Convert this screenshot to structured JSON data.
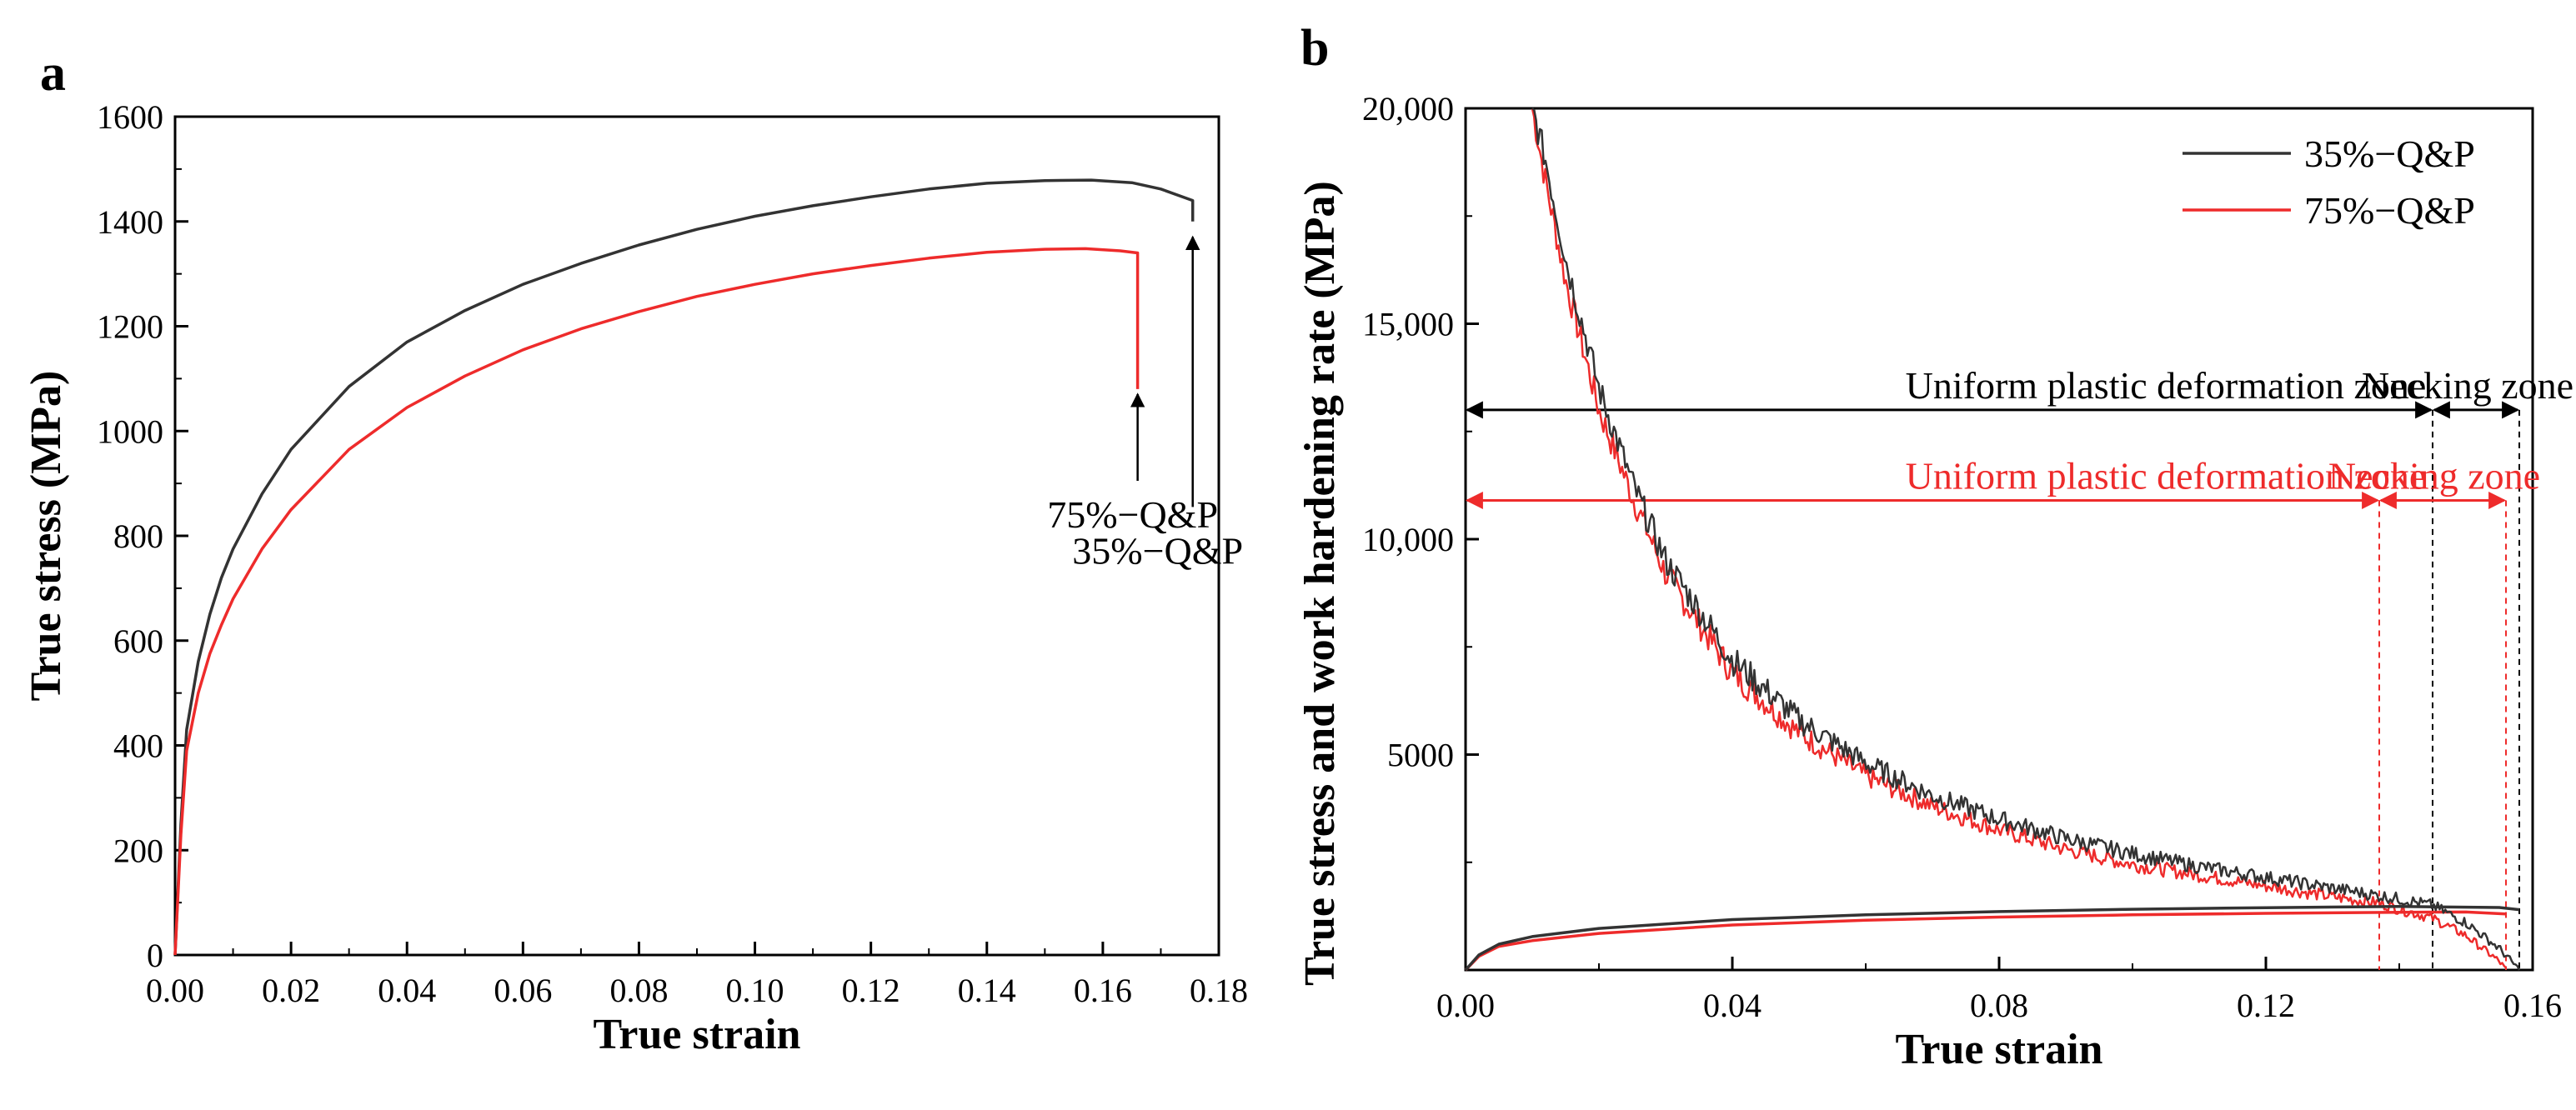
{
  "colors": {
    "q35": "#333333",
    "q75": "#ee2b2b",
    "axis": "#000000"
  },
  "chart_data": [
    {
      "panel": "a",
      "type": "line",
      "xlabel": "True strain",
      "ylabel": "True stress (MPa)",
      "xlim": [
        0,
        0.18
      ],
      "ylim": [
        0,
        1600
      ],
      "xticks": [
        "0.00",
        "0.02",
        "0.04",
        "0.06",
        "0.08",
        "0.10",
        "0.12",
        "0.14",
        "0.16",
        "0.18"
      ],
      "yticks": [
        "0",
        "200",
        "400",
        "600",
        "800",
        "1000",
        "1200",
        "1400",
        "1600"
      ],
      "grid": false,
      "series": [
        {
          "name": "35%−Q&P",
          "color": "#333333",
          "x": [
            0,
            0.001,
            0.002,
            0.004,
            0.006,
            0.008,
            0.01,
            0.015,
            0.02,
            0.03,
            0.04,
            0.05,
            0.06,
            0.07,
            0.08,
            0.09,
            0.1,
            0.11,
            0.12,
            0.13,
            0.14,
            0.15,
            0.158,
            0.165,
            0.17,
            0.1755,
            0.1755
          ],
          "y": [
            0,
            250,
            430,
            560,
            650,
            720,
            775,
            880,
            965,
            1085,
            1170,
            1230,
            1280,
            1320,
            1355,
            1385,
            1410,
            1430,
            1447,
            1462,
            1473,
            1478,
            1479,
            1474,
            1462,
            1440,
            1400
          ]
        },
        {
          "name": "75%−Q&P",
          "color": "#ee2b2b",
          "x": [
            0,
            0.001,
            0.002,
            0.004,
            0.006,
            0.008,
            0.01,
            0.015,
            0.02,
            0.03,
            0.04,
            0.05,
            0.06,
            0.07,
            0.08,
            0.09,
            0.1,
            0.11,
            0.12,
            0.13,
            0.14,
            0.15,
            0.157,
            0.163,
            0.166,
            0.166
          ],
          "y": [
            0,
            230,
            390,
            500,
            575,
            630,
            680,
            775,
            850,
            965,
            1045,
            1105,
            1155,
            1195,
            1228,
            1257,
            1280,
            1300,
            1316,
            1330,
            1341,
            1347,
            1348,
            1344,
            1340,
            1080
          ]
        }
      ],
      "annotations": [
        {
          "text": "75%−Q&P",
          "x": 0.166,
          "y": 1080,
          "color": "#000000"
        },
        {
          "text": "35%−Q&P",
          "x": 0.1755,
          "y": 1380,
          "color": "#000000"
        }
      ]
    },
    {
      "panel": "b",
      "type": "line",
      "xlabel": "True strain",
      "ylabel": "True stress and work hardening rate (MPa)",
      "xlim": [
        0,
        0.16
      ],
      "ylim": [
        0,
        20000
      ],
      "xticks": [
        "0.00",
        "0.04",
        "0.08",
        "0.12",
        "0.16"
      ],
      "yticks": [
        "5000",
        "10,000",
        "15,000",
        "20,000"
      ],
      "grid": false,
      "legend": {
        "placement": "top-right",
        "entries": [
          "35%−Q&P",
          "75%−Q&P"
        ]
      },
      "series": [
        {
          "name": "35%−Q&P",
          "kind": "work-hardening-rate",
          "color": "#333333",
          "x": [
            0.01,
            0.012,
            0.015,
            0.02,
            0.025,
            0.03,
            0.04,
            0.05,
            0.06,
            0.07,
            0.08,
            0.09,
            0.1,
            0.11,
            0.12,
            0.13,
            0.14,
            0.145,
            0.15,
            0.155,
            0.158
          ],
          "y": [
            20000,
            18800,
            16500,
            13500,
            11300,
            9500,
            7200,
            5800,
            4800,
            4050,
            3500,
            3050,
            2700,
            2400,
            2150,
            1900,
            1650,
            1500,
            1100,
            500,
            0
          ]
        },
        {
          "name": "35%−Q&P",
          "kind": "true-stress",
          "color": "#333333",
          "x": [
            0,
            0.002,
            0.005,
            0.01,
            0.02,
            0.04,
            0.06,
            0.08,
            0.1,
            0.12,
            0.14,
            0.155,
            0.158
          ],
          "y": [
            0,
            350,
            600,
            775,
            965,
            1170,
            1280,
            1355,
            1410,
            1447,
            1473,
            1450,
            1400
          ]
        },
        {
          "name": "75%−Q&P",
          "kind": "work-hardening-rate",
          "color": "#ee2b2b",
          "x": [
            0.01,
            0.012,
            0.015,
            0.02,
            0.025,
            0.03,
            0.04,
            0.05,
            0.06,
            0.07,
            0.08,
            0.09,
            0.1,
            0.11,
            0.12,
            0.13,
            0.137,
            0.145,
            0.15,
            0.155,
            0.156
          ],
          "y": [
            20000,
            18300,
            16000,
            13000,
            11000,
            9200,
            6900,
            5500,
            4500,
            3800,
            3250,
            2800,
            2450,
            2200,
            1950,
            1700,
            1550,
            1200,
            800,
            200,
            0
          ]
        },
        {
          "name": "75%−Q&P",
          "kind": "true-stress",
          "color": "#ee2b2b",
          "x": [
            0,
            0.002,
            0.005,
            0.01,
            0.02,
            0.04,
            0.06,
            0.08,
            0.1,
            0.12,
            0.14,
            0.15,
            0.156
          ],
          "y": [
            0,
            320,
            550,
            680,
            850,
            1045,
            1155,
            1228,
            1280,
            1316,
            1341,
            1347,
            1300
          ]
        }
      ],
      "zones": [
        {
          "label": "Uniform plastic deformation zone",
          "color": "#000000",
          "y": 13000,
          "x_start": 0,
          "x_end": 0.145
        },
        {
          "label": "Necking zone",
          "color": "#000000",
          "y": 13000,
          "x_start": 0.145,
          "x_end": 0.158
        },
        {
          "label": "Uniform plastic deformation zone",
          "color": "#ee2b2b",
          "y": 10900,
          "x_start": 0,
          "x_end": 0.137
        },
        {
          "label": "Necking zone",
          "color": "#ee2b2b",
          "y": 10900,
          "x_start": 0.137,
          "x_end": 0.156
        }
      ]
    }
  ]
}
